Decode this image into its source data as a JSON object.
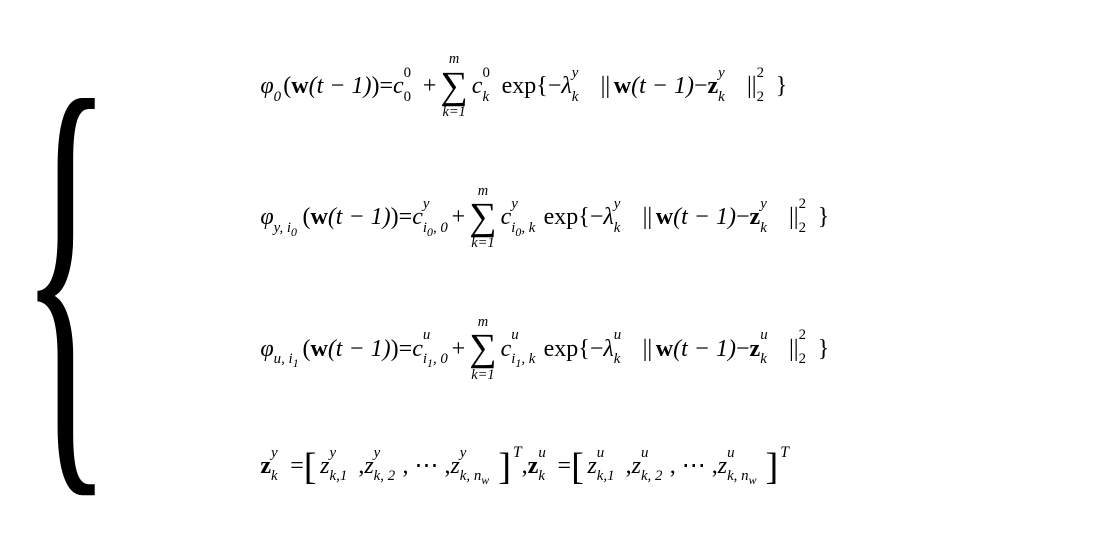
{
  "eq1": {
    "lhs_phi": "φ",
    "lhs_sub": "0",
    "lhs_arg_open": "(",
    "lhs_w": "w",
    "lhs_targ": "(t − 1)",
    "lhs_arg_close": ")",
    "eq": " = ",
    "c0_base": "c",
    "c0_sup": "0",
    "c0_sub": "0",
    "plus": " + ",
    "sum_top": "m",
    "sum_mid": "∑",
    "sum_bot": "k=1",
    "ck_base": "c",
    "ck_sup": "0",
    "ck_sub": "k",
    "exp": "exp",
    "lbrace": "{",
    "minus": "−",
    "lambda_base": "λ",
    "lambda_sup": "y",
    "lambda_sub": "k",
    "dpipe": "||",
    "w2": "w",
    "targ2": "(t − 1)",
    "minus2": " − ",
    "z_base": "z",
    "z_sup": "y",
    "z_sub": "k",
    "dpipe2": "||",
    "norm_sup": "2",
    "norm_sub": "2",
    "rbrace": "}"
  },
  "eq2": {
    "lhs_phi": "φ",
    "lhs_sub_a": "y, i",
    "lhs_sub_b": "0",
    "lhs_arg_open": "(",
    "lhs_w": "w",
    "lhs_targ": "(t − 1)",
    "lhs_arg_close": ")",
    "eq": " = ",
    "c0_base": "c",
    "c0_sup": "y",
    "c0_sub_a": "i",
    "c0_sub_b": "0",
    "c0_sub_c": ", 0",
    "plus": " + ",
    "sum_top": "m",
    "sum_mid": "∑",
    "sum_bot": "k=1",
    "ck_base": "c",
    "ck_sup": "y",
    "ck_sub_a": "i",
    "ck_sub_b": "0",
    "ck_sub_c": ", k",
    "exp": "exp",
    "lbrace": "{",
    "minus": "−",
    "lambda_base": "λ",
    "lambda_sup": "y",
    "lambda_sub": "k",
    "dpipe": "||",
    "w2": "w",
    "targ2": "(t − 1)",
    "minus2": " − ",
    "z_base": "z",
    "z_sup": "y",
    "z_sub": "k",
    "dpipe2": "||",
    "norm_sup": "2",
    "norm_sub": "2",
    "rbrace": "}"
  },
  "eq3": {
    "lhs_phi": "φ",
    "lhs_sub_a": "u, i",
    "lhs_sub_b": "1",
    "lhs_arg_open": "(",
    "lhs_w": "w",
    "lhs_targ": "(t − 1)",
    "lhs_arg_close": ")",
    "eq": " = ",
    "c0_base": "c",
    "c0_sup": "u",
    "c0_sub_a": "i",
    "c0_sub_b": "1",
    "c0_sub_c": ", 0",
    "plus": " + ",
    "sum_top": "m",
    "sum_mid": "∑",
    "sum_bot": "k=1",
    "ck_base": "c",
    "ck_sup": "u",
    "ck_sub_a": "i",
    "ck_sub_b": "1",
    "ck_sub_c": ", k",
    "exp": "exp",
    "lbrace": "{",
    "minus": "−",
    "lambda_base": "λ",
    "lambda_sup": "u",
    "lambda_sub": "k",
    "dpipe": "||",
    "w2": "w",
    "targ2": "(t − 1)",
    "minus2": " − ",
    "z_base": "z",
    "z_sup": "u",
    "z_sub": "k",
    "dpipe2": "||",
    "norm_sup": "2",
    "norm_sub": "2",
    "rbrace": "}"
  },
  "eq4": {
    "zy_base": "z",
    "zy_sup": "y",
    "zy_sub": "k",
    "eq": " = ",
    "lbr": "[",
    "y1_base": "z",
    "y1_sup": "y",
    "y1_sub": "k,1",
    "comma": ", ",
    "y2_base": "z",
    "y2_sup": "y",
    "y2_sub": "k, 2",
    "dots": ", ⋯ , ",
    "yn_base": "z",
    "yn_sup": "y",
    "yn_sub_a": "k, n",
    "yn_sub_b": "w",
    "rbr": "]",
    "T": "T",
    "sep": " ,   ",
    "zu_base": "z",
    "zu_sup": "u",
    "zu_sub": "k",
    "eq2": " = ",
    "lbr2": "[",
    "u1_base": "z",
    "u1_sup": "u",
    "u1_sub": "k,1",
    "u2_base": "z",
    "u2_sup": "u",
    "u2_sub": "k, 2",
    "un_base": "z",
    "un_sup": "u",
    "un_sub_a": "k, n",
    "un_sub_b": "w",
    "rbr2": "]",
    "T2": "T"
  }
}
